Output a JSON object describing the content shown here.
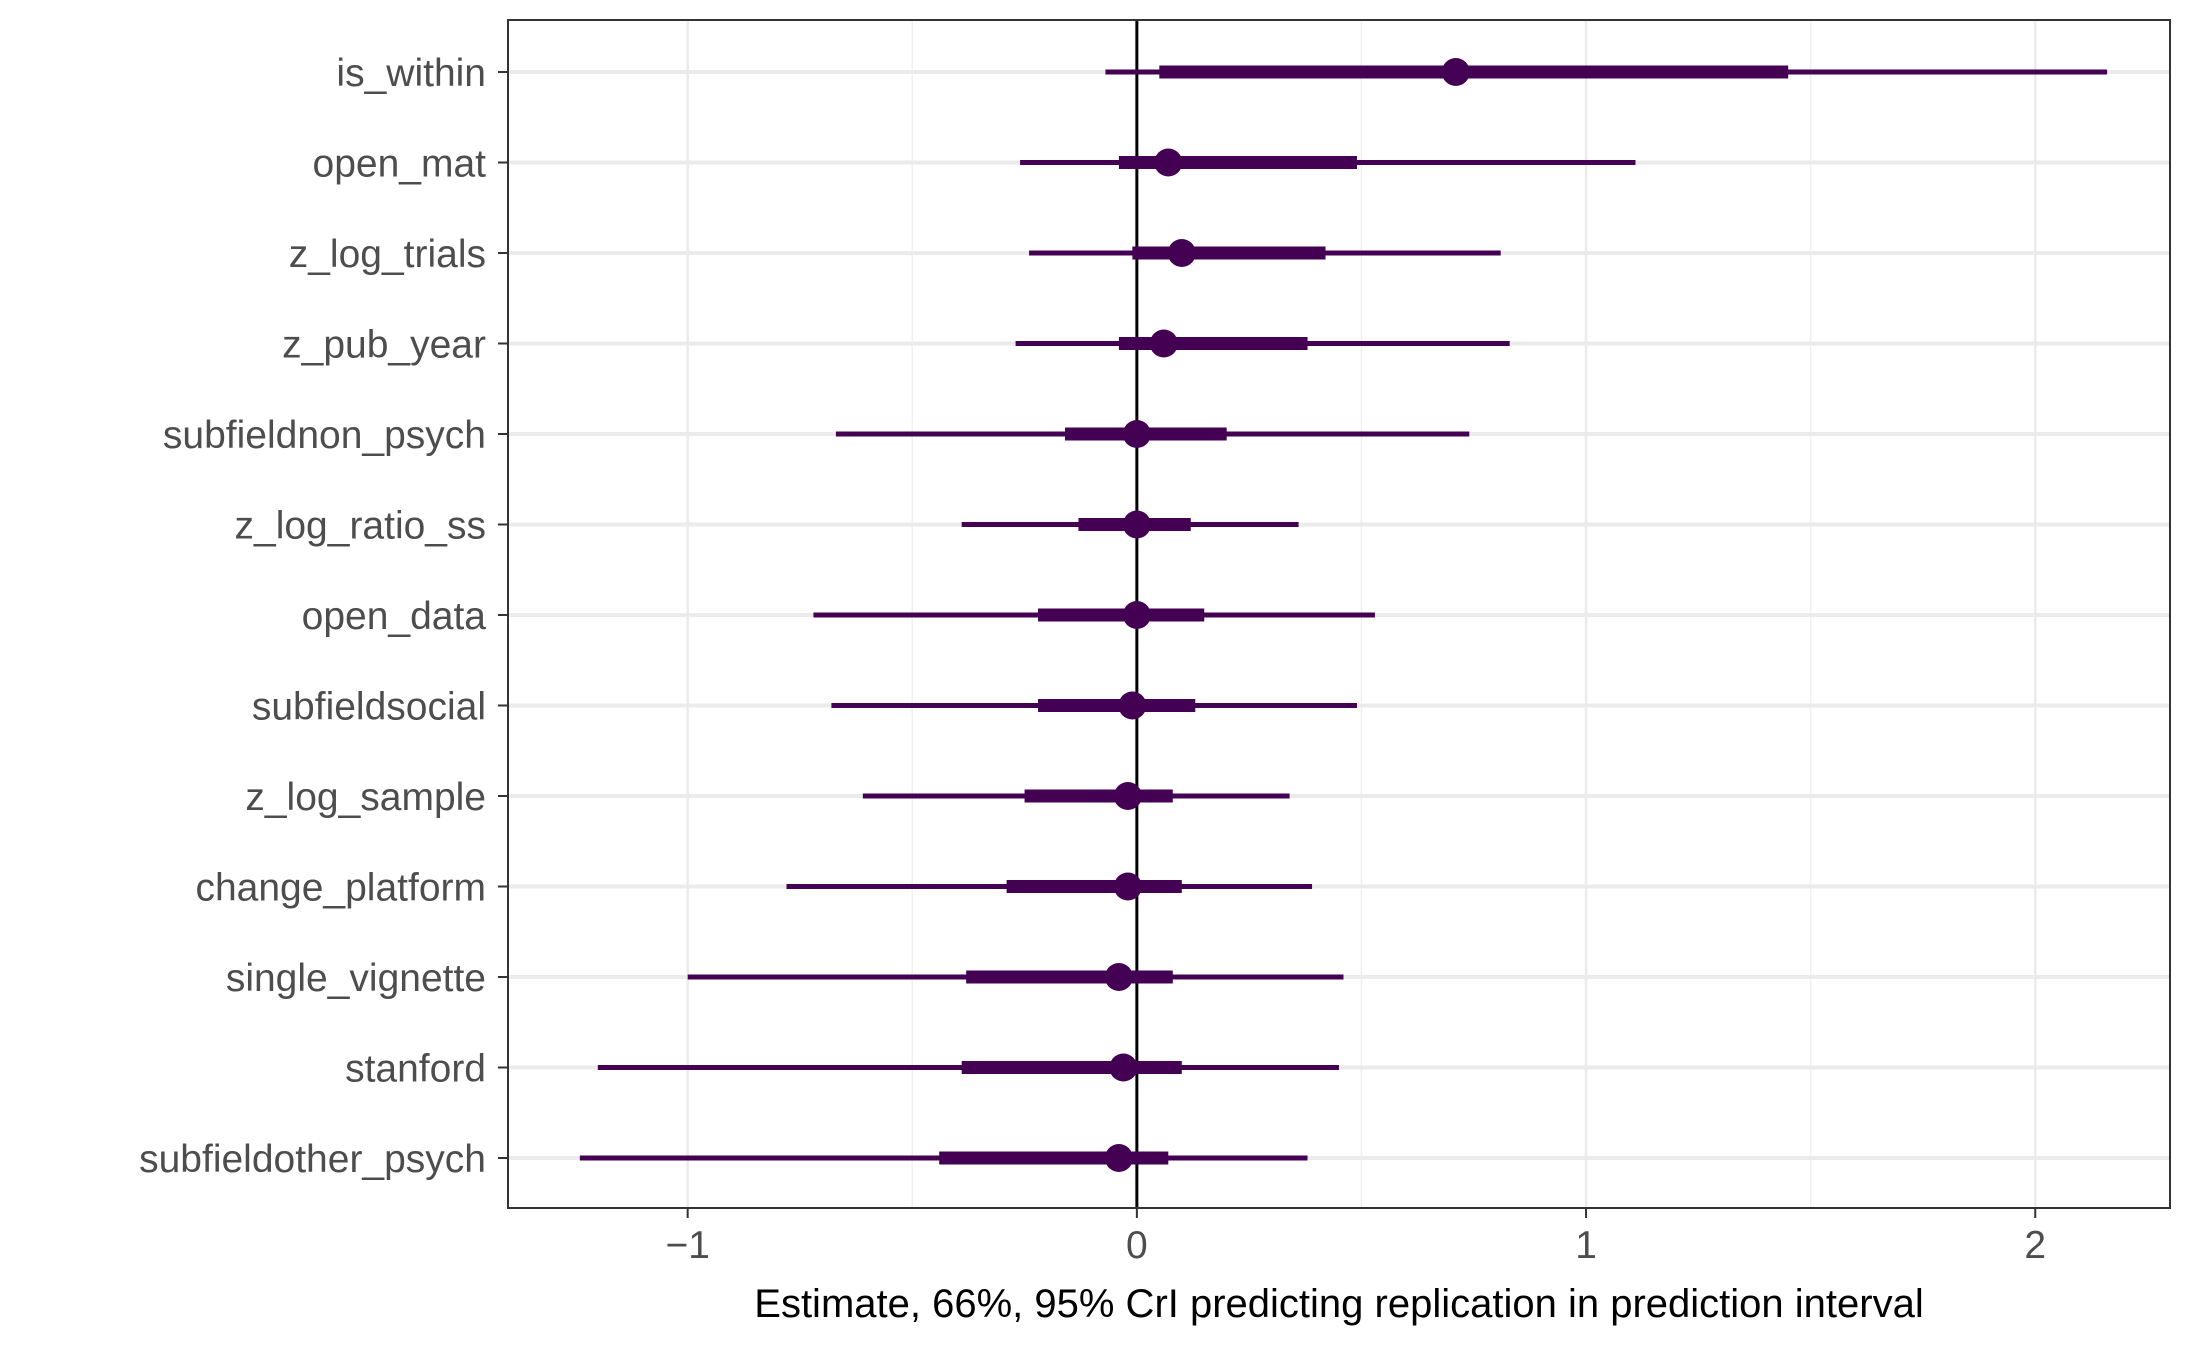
{
  "chart_data": {
    "type": "forest",
    "title": "",
    "xlabel": "Estimate, 66%, 95% CrI predicting replication in prediction interval",
    "ylabel": "",
    "xlim": [
      -1.4,
      2.3
    ],
    "x_ticks": [
      -1,
      0,
      1,
      2
    ],
    "x_tick_labels": [
      "−1",
      "0",
      "1",
      "2"
    ],
    "x_minor_ticks": [
      -0.5,
      0.5,
      1.5
    ],
    "reference_line_x": 0,
    "grid": true,
    "legend": "none",
    "color": "#440154",
    "rows": [
      {
        "term": "is_within",
        "estimate": 0.71,
        "ci66": [
          0.05,
          1.45
        ],
        "ci95": [
          -0.07,
          2.16
        ]
      },
      {
        "term": "open_mat",
        "estimate": 0.07,
        "ci66": [
          -0.04,
          0.49
        ],
        "ci95": [
          -0.26,
          1.11
        ]
      },
      {
        "term": "z_log_trials",
        "estimate": 0.1,
        "ci66": [
          -0.01,
          0.42
        ],
        "ci95": [
          -0.24,
          0.81
        ]
      },
      {
        "term": "z_pub_year",
        "estimate": 0.06,
        "ci66": [
          -0.04,
          0.38
        ],
        "ci95": [
          -0.27,
          0.83
        ]
      },
      {
        "term": "subfieldnon_psych",
        "estimate": 0.0,
        "ci66": [
          -0.16,
          0.2
        ],
        "ci95": [
          -0.67,
          0.74
        ]
      },
      {
        "term": "z_log_ratio_ss",
        "estimate": 0.0,
        "ci66": [
          -0.13,
          0.12
        ],
        "ci95": [
          -0.39,
          0.36
        ]
      },
      {
        "term": "open_data",
        "estimate": 0.0,
        "ci66": [
          -0.22,
          0.15
        ],
        "ci95": [
          -0.72,
          0.53
        ]
      },
      {
        "term": "subfieldsocial",
        "estimate": -0.01,
        "ci66": [
          -0.22,
          0.13
        ],
        "ci95": [
          -0.68,
          0.49
        ]
      },
      {
        "term": "z_log_sample",
        "estimate": -0.02,
        "ci66": [
          -0.25,
          0.08
        ],
        "ci95": [
          -0.61,
          0.34
        ]
      },
      {
        "term": "change_platform",
        "estimate": -0.02,
        "ci66": [
          -0.29,
          0.1
        ],
        "ci95": [
          -0.78,
          0.39
        ]
      },
      {
        "term": "single_vignette",
        "estimate": -0.04,
        "ci66": [
          -0.38,
          0.08
        ],
        "ci95": [
          -1.0,
          0.46
        ]
      },
      {
        "term": "stanford",
        "estimate": -0.03,
        "ci66": [
          -0.39,
          0.1
        ],
        "ci95": [
          -1.2,
          0.45
        ]
      },
      {
        "term": "subfieldother_psych",
        "estimate": -0.04,
        "ci66": [
          -0.44,
          0.07
        ],
        "ci95": [
          -1.24,
          0.38
        ]
      }
    ]
  }
}
